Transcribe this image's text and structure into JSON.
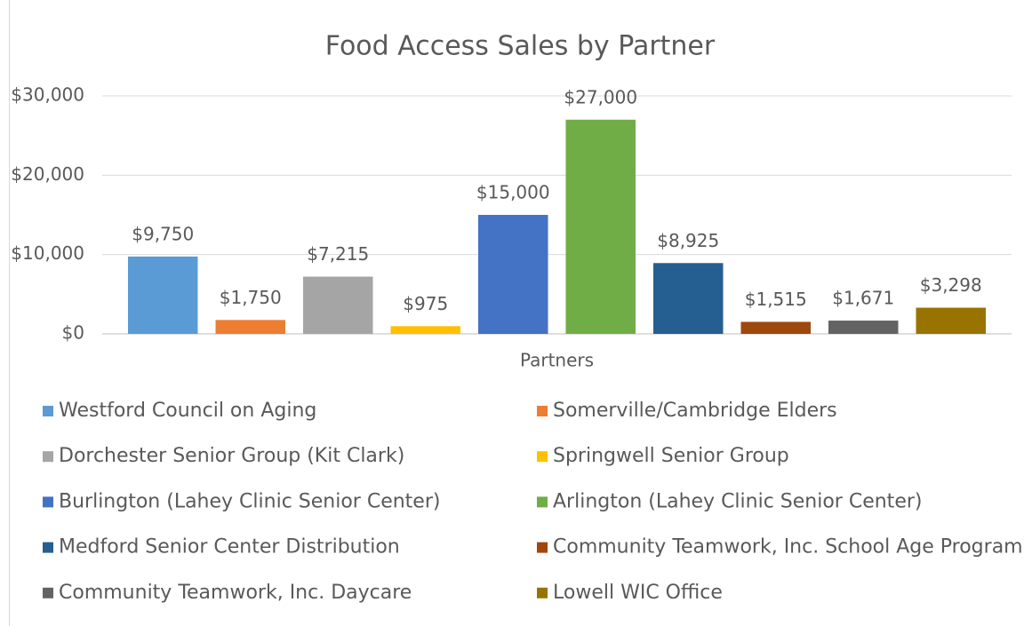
{
  "chart_data": {
    "type": "bar",
    "title": "Food Access Sales by Partner",
    "categories": [
      "Partners"
    ],
    "series": [
      {
        "name": "Westford Council on Aging",
        "color": "#5b9bd5",
        "values": [
          9750
        ],
        "value_labels": [
          "$9,750"
        ]
      },
      {
        "name": "Somerville/Cambridge Elders",
        "color": "#ed7d31",
        "values": [
          1750
        ],
        "value_labels": [
          "$1,750"
        ]
      },
      {
        "name": "Dorchester Senior Group (Kit Clark)",
        "color": "#a5a5a5",
        "values": [
          7215
        ],
        "value_labels": [
          "$7,215"
        ]
      },
      {
        "name": "Springwell Senior Group",
        "color": "#ffc000",
        "values": [
          975
        ],
        "value_labels": [
          "$975"
        ]
      },
      {
        "name": "Burlington (Lahey Clinic Senior Center)",
        "color": "#4472c4",
        "values": [
          15000
        ],
        "value_labels": [
          "$15,000"
        ]
      },
      {
        "name": "Arlington (Lahey Clinic Senior Center)",
        "color": "#70ad47",
        "values": [
          27000
        ],
        "value_labels": [
          "$27,000"
        ]
      },
      {
        "name": "Medford Senior Center Distribution",
        "color": "#255e91",
        "values": [
          8925
        ],
        "value_labels": [
          "$8,925"
        ]
      },
      {
        "name": "Community Teamwork, Inc. School Age Program",
        "color": "#9e480e",
        "values": [
          1515
        ],
        "value_labels": [
          "$1,515"
        ]
      },
      {
        "name": "Community Teamwork, Inc. Daycare",
        "color": "#636363",
        "values": [
          1671
        ],
        "value_labels": [
          "$1,671"
        ]
      },
      {
        "name": "Lowell WIC Office",
        "color": "#997300",
        "values": [
          3298
        ],
        "value_labels": [
          "$3,298"
        ]
      }
    ],
    "ylim": [
      0,
      30000
    ],
    "yticks": [
      {
        "value": 0,
        "label": "$0"
      },
      {
        "value": 10000,
        "label": "$10,000"
      },
      {
        "value": 20000,
        "label": "$20,000"
      },
      {
        "value": 30000,
        "label": "$30,000"
      }
    ],
    "grid": true,
    "legend": "bottom"
  }
}
